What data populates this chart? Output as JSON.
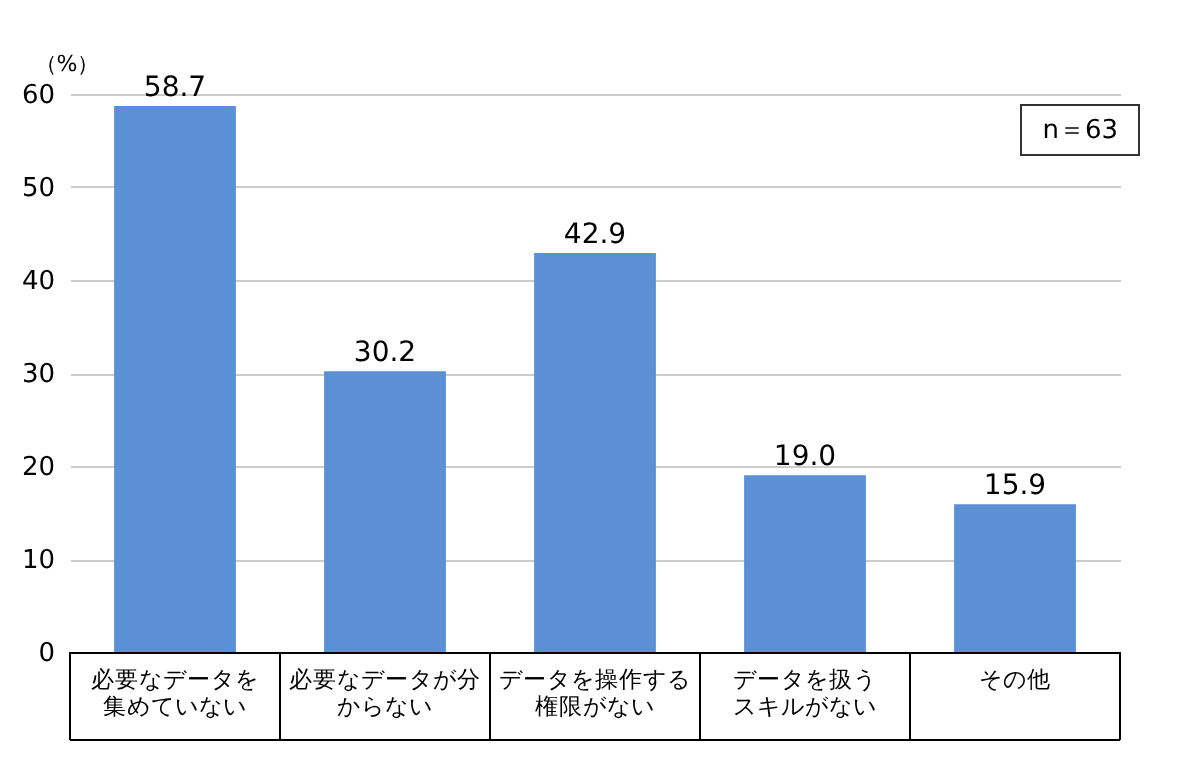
{
  "chart_data": {
    "type": "bar",
    "ylabel": "（%）",
    "categories": [
      "必要なデータを集めていない",
      "必要なデータが分からない",
      "データを操作する権限がない",
      "データを扱うスキルがない",
      "その他"
    ],
    "values": [
      58.7,
      30.2,
      42.9,
      19.0,
      15.9
    ],
    "color": "#5b8fd6",
    "ylim": [
      0,
      60
    ],
    "yticks": [
      0,
      10,
      20,
      30,
      40,
      50,
      60
    ],
    "grid": "y",
    "value_labels": [
      "58.7",
      "30.2",
      "42.9",
      "19.0",
      "15.9"
    ],
    "annotations": [
      "n＝63"
    ]
  }
}
